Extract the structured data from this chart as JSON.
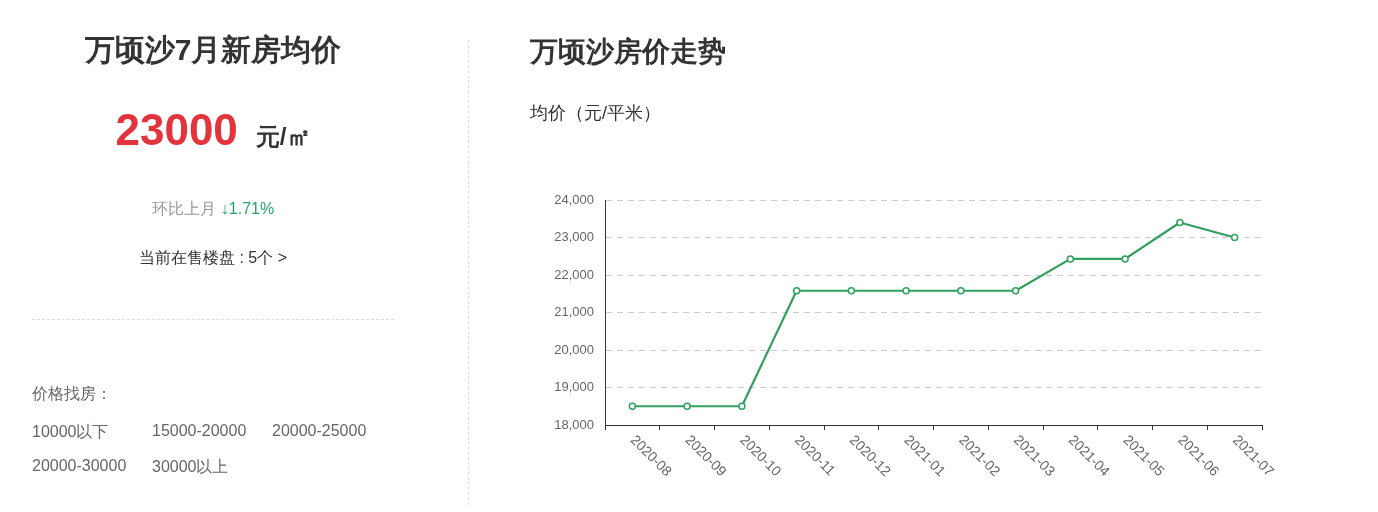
{
  "chart_data": [
    {
      "type": "other",
      "title": "万顷沙7月新房均价",
      "annotations": [
        "23000",
        "元/㎡",
        "环比上月",
        "↓1.71%",
        "当前在售楼盘 : 5个 >",
        "价格找房：",
        "10000以下",
        "15000-20000",
        "20000-25000",
        "20000-30000",
        "30000以上"
      ]
    },
    {
      "type": "line",
      "title": "万顷沙房价走势",
      "ylabel": "均价（元/平米）",
      "categories": [
        "2020-08",
        "2020-09",
        "2020-10",
        "2020-11",
        "2020-12",
        "2021-01",
        "2021-02",
        "2021-03",
        "2021-04",
        "2021-05",
        "2021-06",
        "2021-07"
      ],
      "series": [
        {
          "color": "#30a05f",
          "values": [
            18500,
            18500,
            18500,
            21580,
            21580,
            21580,
            21580,
            21580,
            22430,
            22430,
            23400,
            23000
          ]
        }
      ],
      "ylim": [
        18000,
        24000
      ],
      "yticks": [
        {
          "value": 18000,
          "label": "18,000"
        },
        {
          "value": 19000,
          "label": "19,000"
        },
        {
          "value": 20000,
          "label": "20,000"
        },
        {
          "value": 21000,
          "label": "21,000"
        },
        {
          "value": 22000,
          "label": "22,000"
        },
        {
          "value": 23000,
          "label": "23,000"
        },
        {
          "value": 24000,
          "label": "24,000"
        }
      ],
      "grid": "y",
      "marker": "circle",
      "line_style": "solid"
    }
  ]
}
